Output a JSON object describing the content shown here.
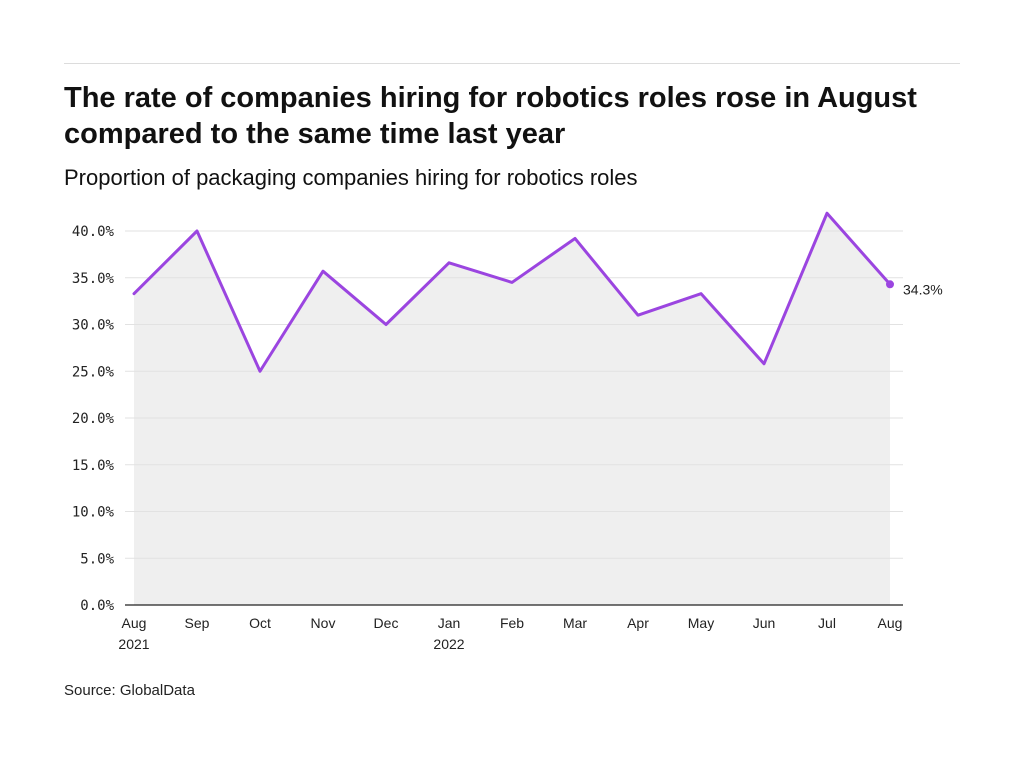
{
  "header": {
    "title": "The rate of companies hiring for robotics roles rose in August compared to the same time last year",
    "subtitle": "Proportion of packaging companies hiring for robotics roles"
  },
  "footer": {
    "source": "Source: GlobalData"
  },
  "colors": {
    "line": "#9b45e0",
    "area": "#efefef",
    "grid": "#e2e2e2",
    "axis": "#222222"
  },
  "chart_data": {
    "type": "area",
    "title": "The rate of companies hiring for robotics roles rose in August compared to the same time last year",
    "subtitle": "Proportion of packaging companies hiring for robotics roles",
    "categories": [
      "Aug\n2021",
      "Sep",
      "Oct",
      "Nov",
      "Dec",
      "Jan\n2022",
      "Feb",
      "Mar",
      "Apr",
      "May",
      "Jun",
      "Jul",
      "Aug"
    ],
    "series": [
      {
        "values": [
          33.3,
          40.0,
          25.0,
          35.7,
          30.0,
          36.6,
          34.5,
          39.2,
          31.0,
          33.3,
          25.8,
          41.9,
          34.3
        ]
      }
    ],
    "ylim": [
      0,
      40
    ],
    "yticks": [
      0,
      5,
      10,
      15,
      20,
      25,
      30,
      35,
      40
    ],
    "ytick_labels": [
      "0.0%",
      "5.0%",
      "10.0%",
      "15.0%",
      "20.0%",
      "25.0%",
      "30.0%",
      "35.0%",
      "40.0%"
    ],
    "end_label": "34.3%",
    "grid": true
  }
}
